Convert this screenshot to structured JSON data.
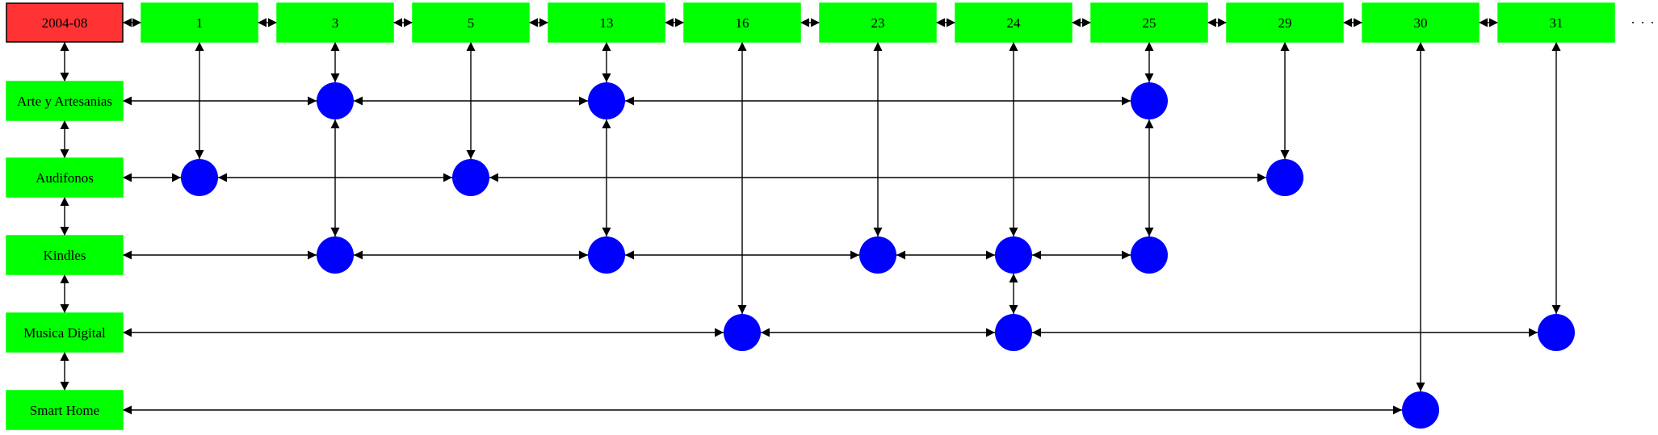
{
  "month_label": "2004-08",
  "days": [
    "1",
    "3",
    "5",
    "13",
    "16",
    "23",
    "24",
    "25",
    "29",
    "30",
    "31"
  ],
  "categories": [
    "Arte y Artesanias",
    "Audifonos",
    "Kindles",
    "Musica Digital",
    "Smart Home"
  ],
  "events": [
    {
      "category": "Arte y Artesanias",
      "days": [
        "3",
        "13",
        "25"
      ]
    },
    {
      "category": "Audifonos",
      "days": [
        "1",
        "5",
        "29"
      ]
    },
    {
      "category": "Kindles",
      "days": [
        "3",
        "13",
        "23",
        "24",
        "25"
      ]
    },
    {
      "category": "Musica Digital",
      "days": [
        "16",
        "24",
        "31"
      ]
    },
    {
      "category": "Smart Home",
      "days": [
        "30"
      ]
    }
  ],
  "colors": {
    "month_box": "#ff3333",
    "day_box": "#00ff00",
    "category_box": "#00ff00",
    "event_dot": "#0000ff"
  }
}
